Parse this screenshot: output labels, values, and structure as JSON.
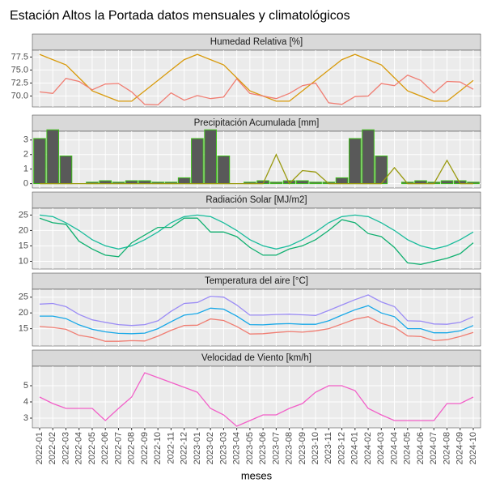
{
  "chart_data": {
    "type": "facet",
    "title": "Estación Altos la Portada datos mensuales y climatológicos",
    "x_label": "meses",
    "categories": [
      "2022-01",
      "2022-02",
      "2022-03",
      "2022-04",
      "2022-05",
      "2022-06",
      "2022-07",
      "2022-08",
      "2022-09",
      "2022-10",
      "2022-11",
      "2022-12",
      "2023-01",
      "2023-02",
      "2023-03",
      "2023-04",
      "2023-05",
      "2023-06",
      "2023-07",
      "2023-08",
      "2023-09",
      "2023-10",
      "2023-11",
      "2023-12",
      "2024-01",
      "2024-02",
      "2024-03",
      "2024-04",
      "2024-05",
      "2024-06",
      "2024-07",
      "2024-08",
      "2024-09",
      "2024-10"
    ],
    "grid": true,
    "panels": [
      {
        "type": "line",
        "title": "Humedad Relativa [%]",
        "ylim": [
          67.9,
          78.8
        ],
        "yticks": [
          {
            "value": 70,
            "label": "70.0"
          },
          72.5,
          {
            "value": 75,
            "label": "75.0"
          },
          77.5
        ],
        "series": [
          {
            "type": "line",
            "color": "#d89a0b",
            "values": [
              78,
              77,
              76,
              73.5,
              71,
              70,
              69,
              69,
              71,
              73,
              75,
              77,
              78,
              77,
              76,
              73.5,
              71,
              70,
              69,
              69,
              71,
              73,
              75,
              77,
              78,
              77,
              76,
              73.5,
              71,
              70,
              69,
              69,
              71,
              73
            ]
          },
          {
            "type": "line",
            "color": "#f07d72",
            "values": [
              70.8,
              70.5,
              73.4,
              72.8,
              71.2,
              72.3,
              72.4,
              70.8,
              68.4,
              68.3,
              70.6,
              69.2,
              70.1,
              69.5,
              69.8,
              73.3,
              70.5,
              70,
              69.5,
              70.5,
              72,
              72.5,
              68.7,
              68.4,
              69.9,
              70,
              72.4,
              72,
              74,
              73,
              70.6,
              72.8,
              72.7,
              71.3
            ]
          }
        ]
      },
      {
        "type": "bar",
        "title": "Precipitación Acumulada [mm]",
        "ylim": [
          -0.3,
          3.6
        ],
        "yticks": [
          0,
          1,
          2,
          3
        ],
        "series": [
          {
            "type": "bar",
            "color": "#595959",
            "edge_color": "#3fbf1a",
            "values": [
              3.1,
              3.7,
              1.9,
              0,
              0.1,
              0.2,
              0.1,
              0.2,
              0.2,
              0.1,
              0.1,
              0.4,
              3.1,
              3.7,
              1.9,
              0,
              0.1,
              0.2,
              0.1,
              0.2,
              0.2,
              0.1,
              0.1,
              0.4,
              3.1,
              3.7,
              1.9,
              0,
              0.1,
              0.2,
              0.1,
              0.2,
              0.2,
              0.1
            ]
          },
          {
            "type": "line",
            "color": "#9a9a10",
            "values": [
              0,
              0,
              0,
              0,
              0,
              0,
              0,
              0,
              0,
              0,
              0,
              0,
              0,
              0,
              0,
              0,
              0,
              0,
              2.0,
              0,
              0.9,
              0.8,
              0,
              0,
              0,
              0,
              0,
              1.1,
              0,
              0,
              0,
              1.6,
              0,
              0
            ]
          }
        ]
      },
      {
        "type": "line",
        "title": "Radiación Solar [MJ/m2]",
        "ylim": [
          7.5,
          27.2
        ],
        "yticks": [
          10,
          15,
          20,
          25
        ],
        "series": [
          {
            "type": "line",
            "color": "#1abc9c",
            "values": [
              25,
              24.5,
              22.5,
              20,
              17,
              15,
              14,
              15,
              17,
              19.5,
              22.5,
              24.5,
              25,
              24.5,
              22.5,
              20,
              17,
              15,
              14,
              15,
              17,
              19.5,
              22.5,
              24.5,
              25,
              24.5,
              22.5,
              20,
              17,
              15,
              14,
              15,
              17,
              19.5
            ]
          },
          {
            "type": "line",
            "color": "#10b070",
            "values": [
              24,
              22.5,
              22,
              16.5,
              14,
              12,
              11.5,
              16,
              18.5,
              21,
              21,
              24,
              24,
              19.5,
              19.5,
              18,
              14.5,
              12,
              12,
              14,
              15,
              17,
              20,
              23.5,
              22.5,
              19,
              18,
              14.5,
              9.5,
              9,
              10,
              11,
              12.5,
              16
            ]
          }
        ]
      },
      {
        "type": "line",
        "title": "Temperatura del aire [°C]",
        "ylim": [
          9.5,
          27.5
        ],
        "yticks": [
          15,
          20,
          25
        ],
        "series": [
          {
            "type": "line",
            "color": "#9b8cf5",
            "values": [
              22.8,
              23,
              22,
              19.5,
              17.8,
              17,
              16.3,
              16,
              16.3,
              17.5,
              20.5,
              23,
              23.3,
              25.3,
              25,
              22.5,
              19.3,
              19.3,
              19.5,
              19.6,
              19.4,
              19.2,
              20.8,
              22.5,
              24.2,
              25.7,
              23.5,
              22,
              17.5,
              17.4,
              16.5,
              16.4,
              17,
              18.8
            ]
          },
          {
            "type": "line",
            "color": "#17a8e8",
            "values": [
              19,
              19,
              18.2,
              16.2,
              14.8,
              14,
              13.5,
              13.4,
              13.6,
              15,
              17.2,
              19.3,
              19.8,
              21.5,
              21.2,
              19,
              16.3,
              16.2,
              16.5,
              16.6,
              16.4,
              16.4,
              17.5,
              19.3,
              21,
              22.3,
              20,
              18.8,
              15,
              15,
              13.7,
              13.7,
              14.3,
              16
            ]
          },
          {
            "type": "line",
            "color": "#f07d72",
            "values": [
              15.7,
              15.4,
              14.8,
              12.9,
              12.2,
              11,
              11,
              11.2,
              11.1,
              12.6,
              14.5,
              16,
              16.1,
              18.1,
              17.6,
              15.7,
              13.3,
              13.4,
              13.8,
              14.1,
              13.9,
              14.3,
              15,
              16.5,
              18,
              18.8,
              16.7,
              15.5,
              12.7,
              12.5,
              11.2,
              11.5,
              12.5,
              13.8
            ]
          }
        ]
      },
      {
        "type": "line",
        "title": "Velocidad de Viento [km/h]",
        "ylim": [
          2.4,
          6.2
        ],
        "yticks": [
          3,
          4,
          5
        ],
        "series": [
          {
            "type": "line",
            "color": "#f25fc8",
            "values": [
              4.3,
              3.9,
              3.6,
              3.6,
              3.6,
              2.85,
              3.6,
              4.3,
              5.8,
              5.5,
              5.2,
              4.9,
              4.6,
              3.6,
              3.2,
              2.5,
              2.85,
              3.2,
              3.2,
              3.6,
              3.9,
              4.6,
              5.0,
              5.0,
              4.7,
              3.6,
              3.2,
              2.85,
              2.85,
              2.85,
              2.85,
              3.9,
              3.9,
              4.3
            ]
          }
        ]
      }
    ]
  }
}
